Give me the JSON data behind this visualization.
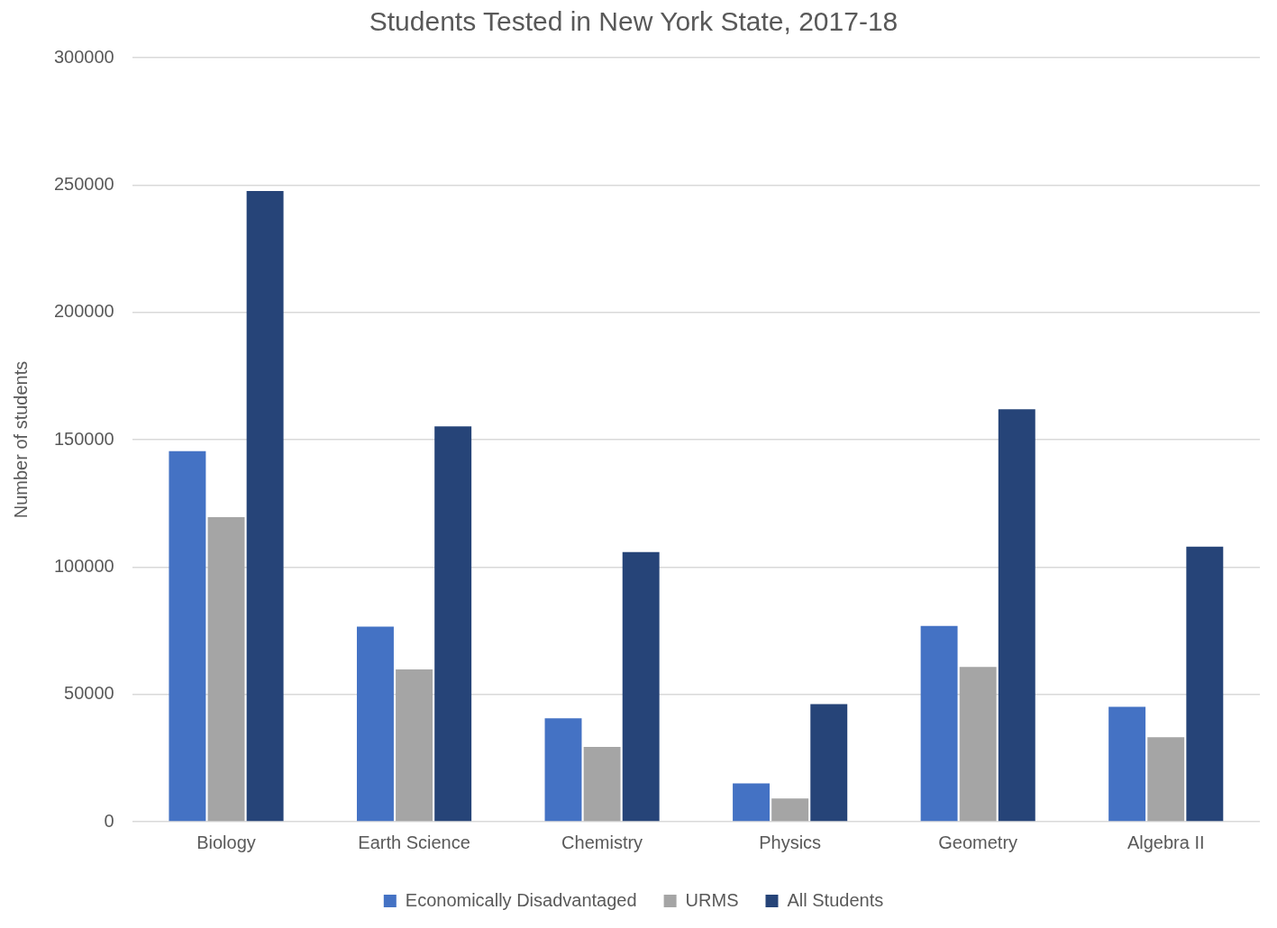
{
  "chart_data": {
    "type": "bar",
    "title": "Students Tested in New York State, 2017-18",
    "ylabel": "Number of students",
    "categories": [
      "Biology",
      "Earth Science",
      "Chemistry",
      "Physics",
      "Geometry",
      "Algebra II"
    ],
    "series": [
      {
        "name": "Economically Disadvantaged",
        "color": "#4472c4",
        "values": [
          145500,
          76600,
          40600,
          15000,
          76900,
          45100
        ]
      },
      {
        "name": "URMS",
        "color": "#a5a5a5",
        "values": [
          119600,
          59800,
          29400,
          9100,
          60800,
          33200
        ]
      },
      {
        "name": "All Students",
        "color": "#264478",
        "values": [
          247600,
          155200,
          105900,
          46200,
          161900,
          108000
        ]
      }
    ],
    "ylim": [
      0,
      300000
    ],
    "yticks": [
      0,
      50000,
      100000,
      150000,
      200000,
      250000,
      300000
    ],
    "grid": "y",
    "legend": "bottom"
  }
}
